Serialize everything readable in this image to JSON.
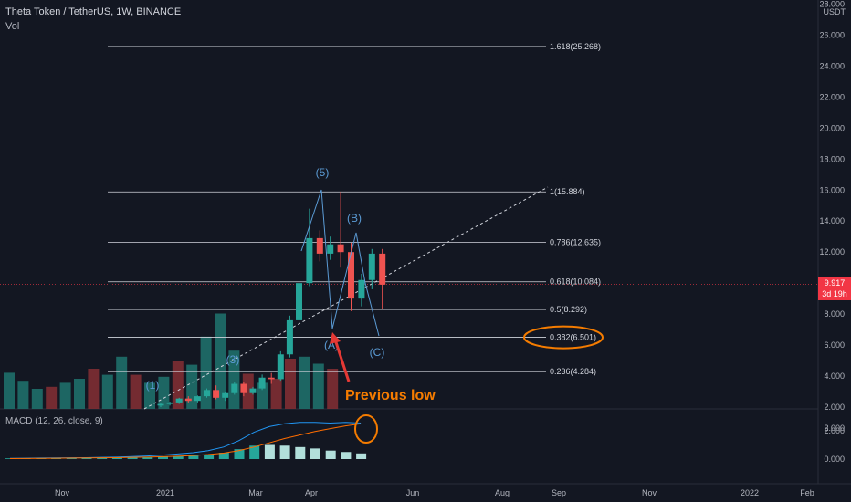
{
  "header": {
    "symbol_line": "Theta Token / TetherUS, 1W, BINANCE",
    "volume_label": "Vol",
    "macd_label": "MACD (12, 26, close, 9)",
    "currency": "USDT"
  },
  "price_tag": {
    "price": "9.917",
    "countdown": "3d 19h"
  },
  "colors": {
    "up": "#26a69a",
    "down": "#ef5350",
    "bg": "#131722",
    "annotation": "#f57c00",
    "wave": "#5b9bd5"
  },
  "chart_data": {
    "type": "candlestick",
    "y_axis": {
      "ylim": [
        2,
        28
      ],
      "ticks": [
        "28.000",
        "26.000",
        "24.000",
        "22.000",
        "20.000",
        "18.000",
        "16.000",
        "14.000",
        "12.000",
        "10.000",
        "8.000",
        "6.000",
        "4.000",
        "2.000"
      ]
    },
    "x_axis": {
      "ticks": [
        "Nov",
        "2021",
        "Mar",
        "Apr",
        "Jun",
        "Aug",
        "Sep",
        "Nov",
        "2022",
        "Feb"
      ]
    },
    "candles": [
      {
        "o": 2.1,
        "h": 2.25,
        "l": 2.0,
        "c": 2.2
      },
      {
        "o": 2.2,
        "h": 2.35,
        "l": 2.1,
        "c": 2.3
      },
      {
        "o": 2.3,
        "h": 2.6,
        "l": 2.2,
        "c": 2.55
      },
      {
        "o": 2.55,
        "h": 2.7,
        "l": 2.3,
        "c": 2.4
      },
      {
        "o": 2.4,
        "h": 2.75,
        "l": 2.3,
        "c": 2.7
      },
      {
        "o": 2.7,
        "h": 3.2,
        "l": 2.6,
        "c": 3.1
      },
      {
        "o": 3.1,
        "h": 3.4,
        "l": 2.5,
        "c": 2.6
      },
      {
        "o": 2.6,
        "h": 3.0,
        "l": 2.4,
        "c": 2.9
      },
      {
        "o": 2.9,
        "h": 3.6,
        "l": 2.8,
        "c": 3.5
      },
      {
        "o": 3.5,
        "h": 3.6,
        "l": 2.7,
        "c": 2.9
      },
      {
        "o": 2.9,
        "h": 3.3,
        "l": 2.8,
        "c": 3.2
      },
      {
        "o": 3.2,
        "h": 4.1,
        "l": 3.1,
        "c": 3.9
      },
      {
        "o": 3.9,
        "h": 4.2,
        "l": 3.5,
        "c": 3.8
      },
      {
        "o": 3.8,
        "h": 5.6,
        "l": 3.7,
        "c": 5.4
      },
      {
        "o": 5.4,
        "h": 7.9,
        "l": 5.2,
        "c": 7.6
      },
      {
        "o": 7.6,
        "h": 10.3,
        "l": 7.3,
        "c": 10.0
      },
      {
        "o": 10.0,
        "h": 14.8,
        "l": 9.8,
        "c": 12.9
      },
      {
        "o": 12.9,
        "h": 13.4,
        "l": 11.4,
        "c": 11.9
      },
      {
        "o": 11.9,
        "h": 13.0,
        "l": 11.5,
        "c": 12.5
      },
      {
        "o": 12.5,
        "h": 15.9,
        "l": 11.0,
        "c": 12.0
      },
      {
        "o": 12.0,
        "h": 12.6,
        "l": 8.2,
        "c": 9.0
      },
      {
        "o": 9.0,
        "h": 10.6,
        "l": 8.5,
        "c": 10.2
      },
      {
        "o": 10.2,
        "h": 12.2,
        "l": 9.6,
        "c": 11.9
      },
      {
        "o": 11.9,
        "h": 12.2,
        "l": 8.3,
        "c": 9.9
      }
    ],
    "volume": [
      0.36,
      0.28,
      0.2,
      0.22,
      0.26,
      0.3,
      0.4,
      0.34,
      0.52,
      0.34,
      0.26,
      0.32,
      0.48,
      0.44,
      0.72,
      0.95,
      0.58,
      0.35,
      0.26,
      0.3,
      0.5,
      0.52,
      0.45,
      0.4
    ],
    "fib_levels": [
      {
        "label": "1.618(25.268)",
        "value": 25.268
      },
      {
        "label": "1(15.884)",
        "value": 15.884
      },
      {
        "label": "0.786(12.635)",
        "value": 12.635
      },
      {
        "label": "0.618(10.084)",
        "value": 10.084
      },
      {
        "label": "0.5(8.292)",
        "value": 8.292
      },
      {
        "label": "0.382(6.501)",
        "value": 6.501
      },
      {
        "label": "0.236(4.284)",
        "value": 4.284
      }
    ],
    "waves": [
      "(1)",
      "(3)",
      "(5)",
      "(A)",
      "(B)",
      "(C)"
    ],
    "annotation": "Previous low",
    "macd": {
      "ticks": [
        "2.000",
        "2.000",
        "0.000"
      ],
      "histogram": [
        0.05,
        0.05,
        0.06,
        0.06,
        0.07,
        0.08,
        0.08,
        0.09,
        0.12,
        0.14,
        0.16,
        0.2,
        0.24,
        0.3,
        0.45,
        0.7,
        0.95,
        1.0,
        0.95,
        0.85,
        0.75,
        0.6,
        0.5,
        0.4
      ],
      "macd_line": [
        0.05,
        0.06,
        0.07,
        0.08,
        0.09,
        0.1,
        0.12,
        0.14,
        0.18,
        0.22,
        0.28,
        0.36,
        0.45,
        0.6,
        0.85,
        1.3,
        1.9,
        2.3,
        2.5,
        2.6,
        2.6,
        2.55,
        2.6,
        2.55
      ],
      "signal_line": [
        0.03,
        0.04,
        0.05,
        0.06,
        0.07,
        0.08,
        0.09,
        0.1,
        0.12,
        0.14,
        0.17,
        0.2,
        0.25,
        0.32,
        0.42,
        0.6,
        0.85,
        1.15,
        1.45,
        1.7,
        1.95,
        2.15,
        2.35,
        2.5
      ]
    }
  }
}
